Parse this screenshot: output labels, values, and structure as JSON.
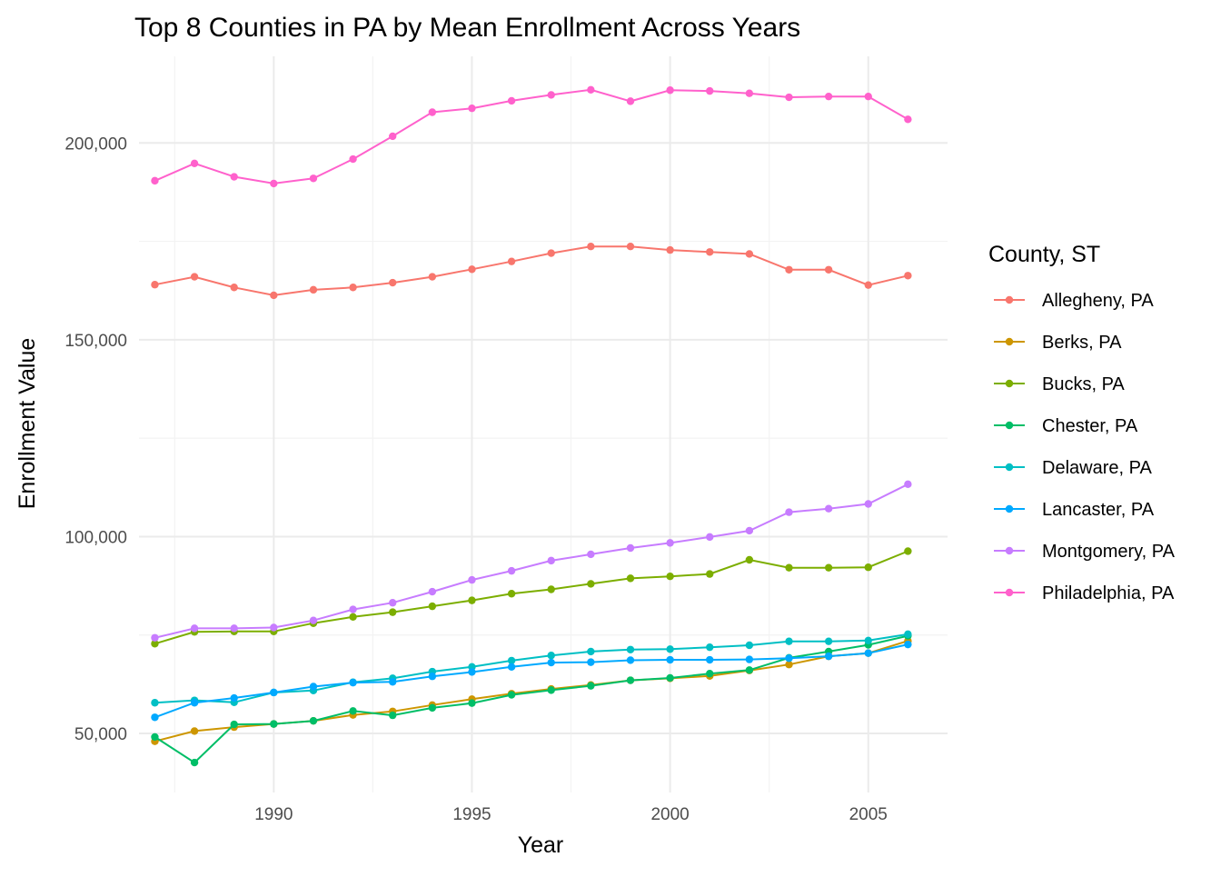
{
  "chart_data": {
    "type": "line",
    "title": "Top 8 Counties in PA by Mean Enrollment Across Years",
    "xlabel": "Year",
    "ylabel": "Enrollment Value",
    "legend_title": "County, ST",
    "legend_position": "right",
    "grid": true,
    "xlim": [
      1986.6,
      2007.0
    ],
    "ylim": [
      35000,
      222000
    ],
    "x_ticks": [
      1990,
      1995,
      2000,
      2005
    ],
    "x_tick_labels": [
      "1990",
      "1995",
      "2000",
      "2005"
    ],
    "y_ticks": [
      50000,
      100000,
      150000,
      200000
    ],
    "y_tick_labels": [
      "50,000",
      "100,000",
      "150,000",
      "200,000"
    ],
    "x": [
      1987,
      1988,
      1989,
      1990,
      1991,
      1992,
      1993,
      1994,
      1995,
      1996,
      1997,
      1998,
      1999,
      2000,
      2001,
      2002,
      2003,
      2004,
      2005,
      2006
    ],
    "series": [
      {
        "name": "Allegheny, PA",
        "color": "#F8766D",
        "values": [
          164000,
          166000,
          163300,
          161300,
          162700,
          163300,
          164500,
          166000,
          167900,
          169900,
          172000,
          173700,
          173700,
          172800,
          172300,
          171800,
          167800,
          167800,
          163900,
          166300
        ]
      },
      {
        "name": "Berks, PA",
        "color": "#CD9600",
        "values": [
          48000,
          50600,
          51600,
          52400,
          53200,
          54700,
          55600,
          57200,
          58700,
          60100,
          61300,
          62300,
          63500,
          64000,
          64600,
          66000,
          67500,
          69600,
          70400,
          73500
        ]
      },
      {
        "name": "Bucks, PA",
        "color": "#7CAE00",
        "values": [
          72800,
          75800,
          75900,
          75900,
          78000,
          79600,
          80800,
          82300,
          83800,
          85500,
          86600,
          88000,
          89400,
          89900,
          90500,
          94100,
          92100,
          92100,
          92200,
          96300
        ]
      },
      {
        "name": "Chester, PA",
        "color": "#00BE67",
        "values": [
          49100,
          42600,
          52300,
          52400,
          53200,
          55700,
          54600,
          56500,
          57700,
          59800,
          61000,
          62100,
          63500,
          64100,
          65200,
          66100,
          69200,
          70800,
          72500,
          74800
        ]
      },
      {
        "name": "Delaware, PA",
        "color": "#00BFC4",
        "values": [
          57800,
          58400,
          57900,
          60400,
          60900,
          63000,
          64000,
          65700,
          66900,
          68500,
          69800,
          70800,
          71300,
          71400,
          71900,
          72400,
          73400,
          73400,
          73600,
          75200
        ]
      },
      {
        "name": "Lancaster, PA",
        "color": "#00A9FF",
        "values": [
          54100,
          57800,
          59000,
          60400,
          61900,
          62900,
          63100,
          64500,
          65600,
          66900,
          68000,
          68100,
          68600,
          68700,
          68700,
          68800,
          69100,
          69600,
          70400,
          72600
        ]
      },
      {
        "name": "Montgomery, PA",
        "color": "#C77CFF",
        "values": [
          74300,
          76700,
          76700,
          76900,
          78700,
          81500,
          83200,
          86000,
          89000,
          91300,
          93900,
          95500,
          97100,
          98400,
          99900,
          101500,
          106200,
          107100,
          108300,
          113300
        ]
      },
      {
        "name": "Philadelphia, PA",
        "color": "#FF61CC",
        "values": [
          190400,
          194800,
          191400,
          189700,
          191000,
          195900,
          201700,
          207800,
          208800,
          210700,
          212200,
          213500,
          210600,
          213400,
          213200,
          212600,
          211600,
          211800,
          211800,
          206000
        ]
      }
    ]
  }
}
